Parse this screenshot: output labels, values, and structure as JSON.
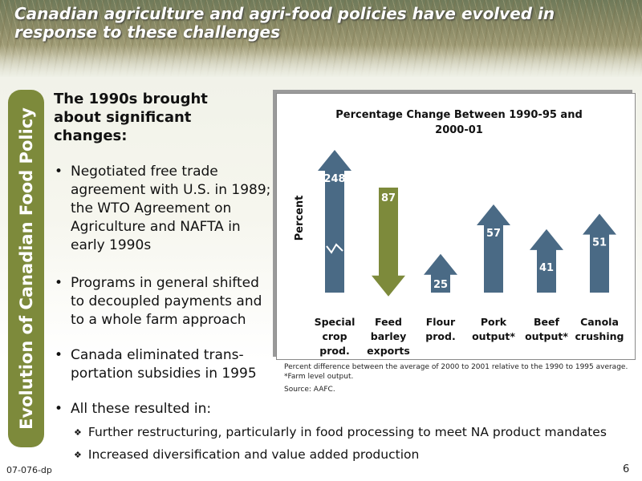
{
  "slide": {
    "title": "Canadian agriculture and agri-food policies have evolved in response to these challenges",
    "side_tab": "Evolution of Canadian Food Policy",
    "intro": "The 1990s brought about significant changes:",
    "bullets": [
      "Negotiated free trade agreement with U.S. in 1989; the WTO Agreement on Agriculture and NAFTA in early 1990s",
      "Programs in general shifted to decoupled payments and to a whole farm approach",
      "Canada eliminated trans-portation subsidies in 1995",
      "All these resulted in:"
    ],
    "sub_bullets": [
      "Further restructuring, particularly in food processing to meet NA product mandates",
      "Increased diversification and value added production"
    ],
    "footer_code": "07-076-dp",
    "page_number": "6"
  },
  "chart_note": {
    "definition": "Percent difference between the average of 2000 to 2001 relative to the 1990 to 1995 average.",
    "footnote": "*Farm level output.",
    "source": "Source: AAFC."
  },
  "colors": {
    "up_arrow": "#4a6a85",
    "down_arrow": "#7d8a3b",
    "side_tab": "#7d8a3b"
  },
  "chart_data": {
    "type": "bar",
    "title": "Percentage Change Between  1990-95 and 2000-01",
    "title_lines": [
      "Percentage Change Between  1990-95 and",
      "2000-01"
    ],
    "ylabel": "Percent",
    "categories": [
      "Special crop prod.",
      "Feed barley exports",
      "Flour prod.",
      "Pork output*",
      "Beef output*",
      "Canola crushing"
    ],
    "category_lines": [
      [
        "Special",
        "crop",
        "prod."
      ],
      [
        "Feed",
        "barley",
        "exports"
      ],
      [
        "Flour",
        "prod."
      ],
      [
        "Pork",
        "output*"
      ],
      [
        "Beef",
        "output*"
      ],
      [
        "Canola",
        "crushing"
      ]
    ],
    "values": [
      248,
      -87,
      25,
      57,
      41,
      51
    ],
    "value_labels": [
      "248",
      "87",
      "25",
      "57",
      "41",
      "51"
    ],
    "axis_break_on": "Special crop prod.",
    "grid": false,
    "legend": "none"
  }
}
